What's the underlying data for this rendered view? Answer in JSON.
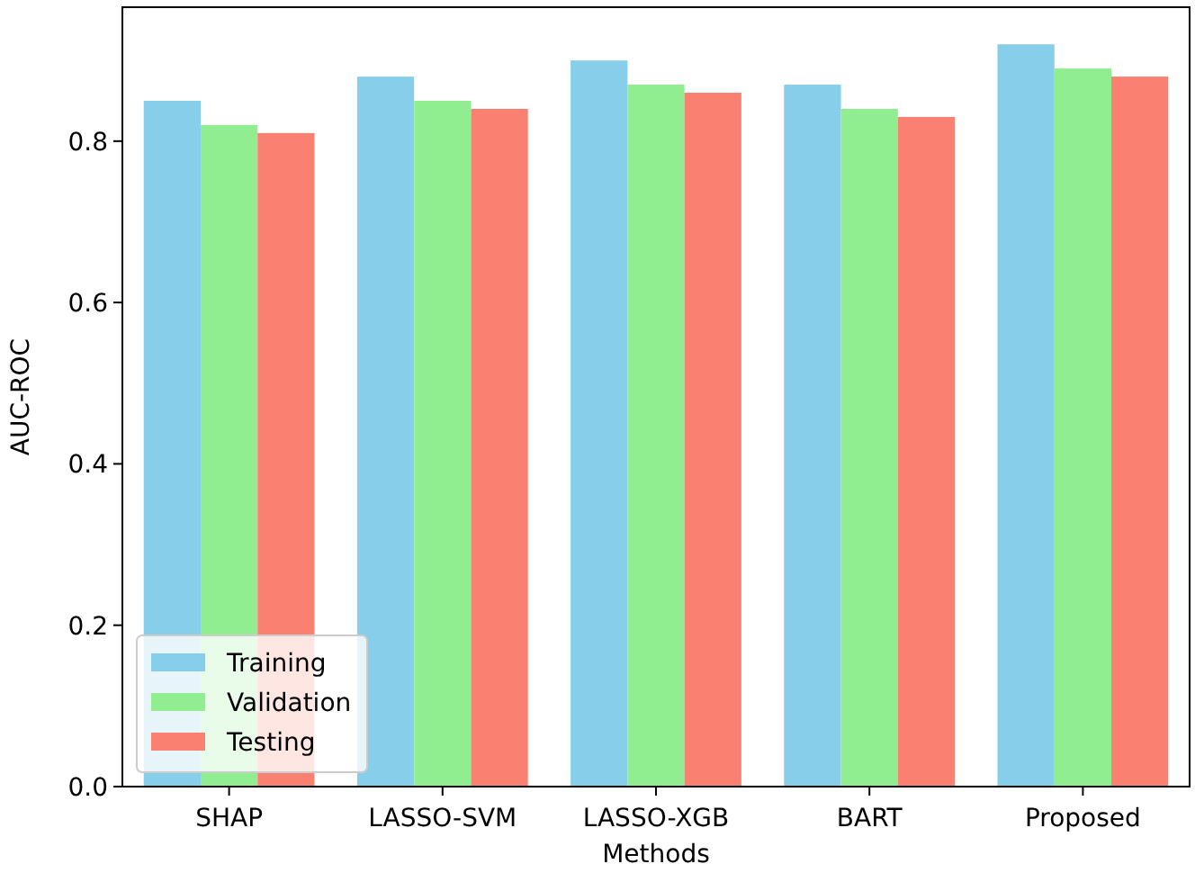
{
  "chart_data": {
    "type": "bar",
    "xlabel": "Methods",
    "ylabel": "AUC-ROC",
    "categories": [
      "SHAP",
      "LASSO-SVM",
      "LASSO-XGB",
      "BART",
      "Proposed"
    ],
    "series": [
      {
        "name": "Training",
        "color": "#87ceeb",
        "values": [
          0.85,
          0.88,
          0.9,
          0.87,
          0.92
        ]
      },
      {
        "name": "Validation",
        "color": "#90ee90",
        "values": [
          0.82,
          0.85,
          0.87,
          0.84,
          0.89
        ]
      },
      {
        "name": "Testing",
        "color": "#fa8072",
        "values": [
          0.81,
          0.84,
          0.86,
          0.83,
          0.88
        ]
      }
    ],
    "ylim": [
      0,
      0.966
    ],
    "yticks": [
      {
        "value": 0,
        "label": "0.0"
      },
      {
        "value": 0.2,
        "label": "0.2"
      },
      {
        "value": 0.4,
        "label": "0.4"
      },
      {
        "value": 0.6,
        "label": "0.6"
      },
      {
        "value": 0.8,
        "label": "0.8"
      }
    ],
    "grid": false,
    "legend": "bottom left"
  }
}
